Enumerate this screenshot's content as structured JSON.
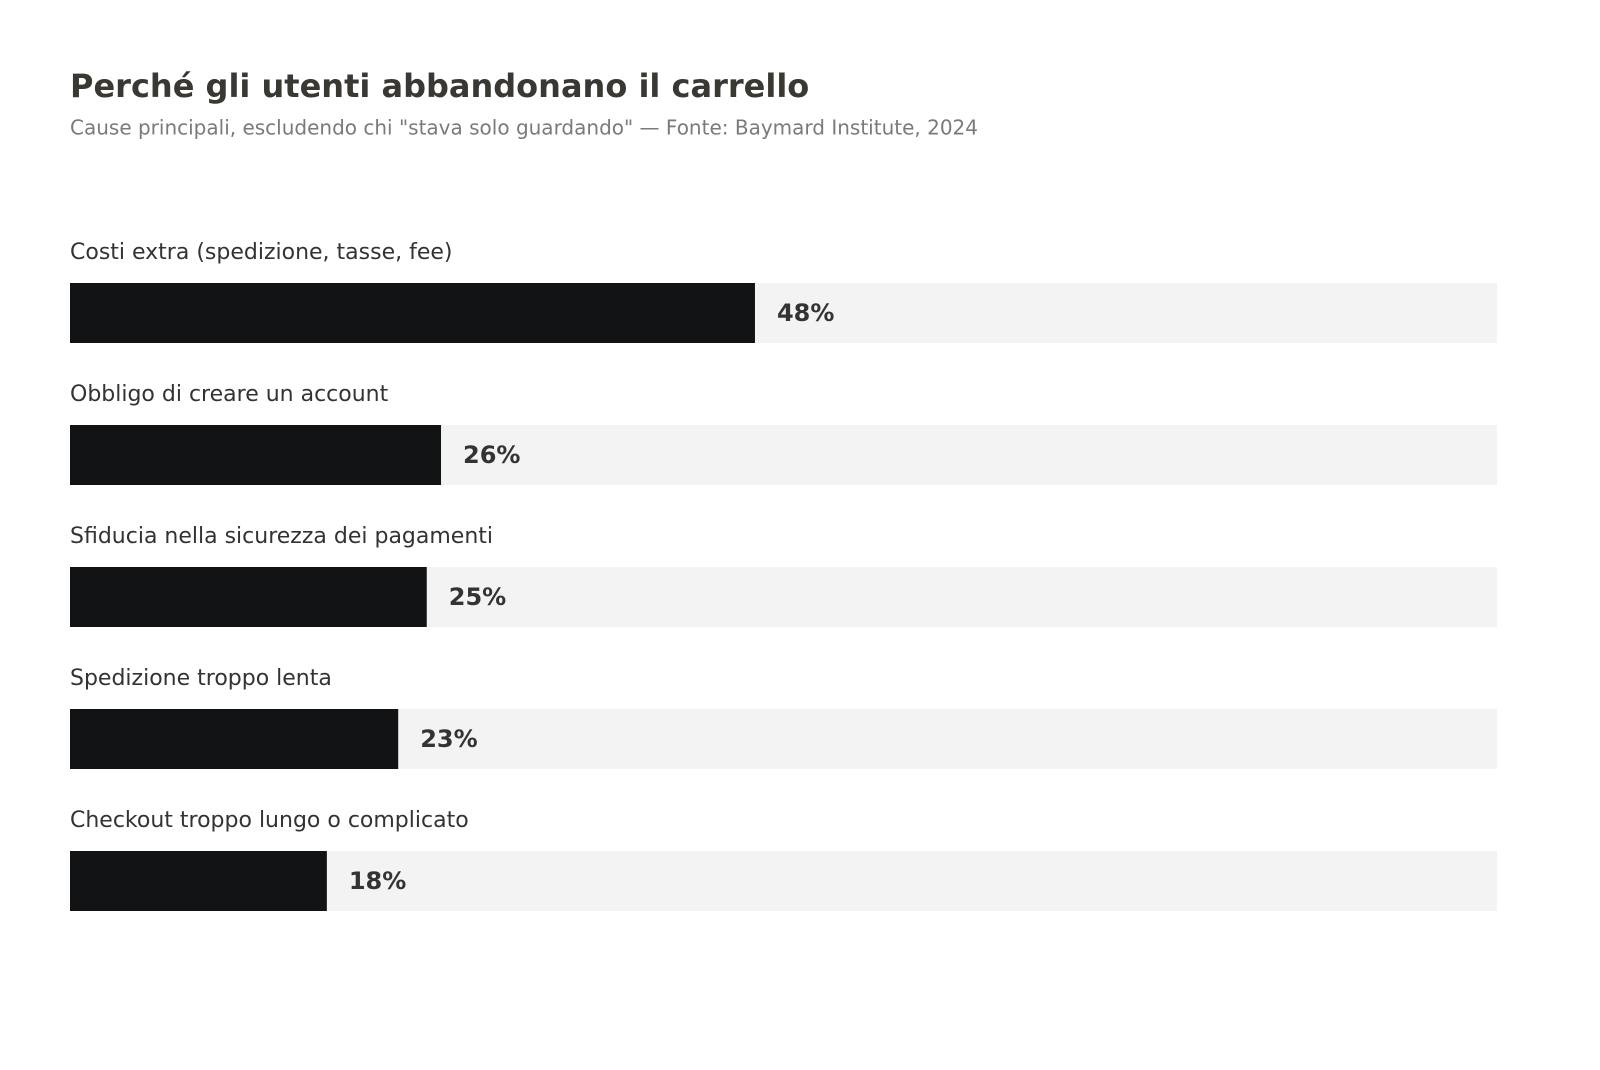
{
  "chart_data": {
    "type": "bar",
    "orientation": "horizontal",
    "title": "Perché gli utenti abbandonano il carrello",
    "subtitle": "Cause principali, escludendo chi \"stava solo guardando\" — Fonte: Baymard Institute, 2024",
    "categories": [
      "Costi extra (spedizione, tasse, fee)",
      "Obbligo di creare un account",
      "Sfiducia nella sicurezza dei pagamenti",
      "Spedizione troppo lenta",
      "Checkout troppo lungo o complicato"
    ],
    "values": [
      48,
      26,
      25,
      23,
      18
    ],
    "value_labels": [
      "48%",
      "26%",
      "25%",
      "23%",
      "18%"
    ],
    "color": "#121315",
    "xlim": [
      0,
      100
    ]
  }
}
